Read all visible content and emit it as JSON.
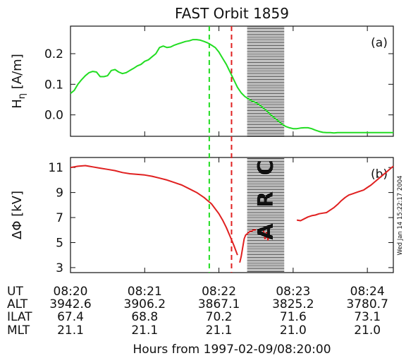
{
  "chart_data": [
    {
      "panel": "(a)",
      "type": "line",
      "title": "FAST Orbit 1859",
      "ylabel": "H_η [A/m]",
      "ylabel_main": "H",
      "ylabel_sub": "η",
      "ylabel_unit": "[A/m]",
      "ylim": [
        -0.07,
        0.29
      ],
      "yticks": [
        "0.2",
        "0.1",
        "0.0"
      ],
      "ytick_values": [
        0.2,
        0.1,
        0.0
      ],
      "xlim": [
        0,
        4.35
      ],
      "color": "#22dd22",
      "series": [
        {
          "x": [
            0.0,
            0.05,
            0.1,
            0.15,
            0.2,
            0.25,
            0.3,
            0.35,
            0.4,
            0.45,
            0.5,
            0.55,
            0.6,
            0.65,
            0.7,
            0.75,
            0.8,
            0.85,
            0.9,
            0.95,
            1.0,
            1.05,
            1.1,
            1.15,
            1.2,
            1.25,
            1.3,
            1.35,
            1.4,
            1.45,
            1.5,
            1.55,
            1.6,
            1.65,
            1.7,
            1.75,
            1.8,
            1.85,
            1.9,
            1.95,
            2.0,
            2.05,
            2.1,
            2.15,
            2.2,
            2.25,
            2.3,
            2.35,
            2.4,
            2.45,
            2.5,
            2.55,
            2.6,
            2.65,
            2.7,
            2.75,
            2.8,
            2.85,
            2.9,
            2.95,
            3.0,
            3.05,
            3.1,
            3.15,
            3.2,
            3.25,
            3.3,
            3.35,
            3.4,
            3.45,
            3.5,
            3.55,
            3.6,
            3.65,
            3.7,
            3.75,
            3.8,
            3.85,
            3.9,
            3.95,
            4.0,
            4.05,
            4.1,
            4.15,
            4.2,
            4.25,
            4.3,
            4.35
          ],
          "y": [
            0.07,
            0.08,
            0.1,
            0.115,
            0.128,
            0.138,
            0.142,
            0.14,
            0.125,
            0.125,
            0.128,
            0.145,
            0.148,
            0.14,
            0.135,
            0.138,
            0.145,
            0.152,
            0.16,
            0.165,
            0.175,
            0.18,
            0.19,
            0.2,
            0.22,
            0.225,
            0.22,
            0.222,
            0.228,
            0.232,
            0.236,
            0.24,
            0.242,
            0.246,
            0.246,
            0.244,
            0.24,
            0.235,
            0.228,
            0.22,
            0.205,
            0.185,
            0.165,
            0.14,
            0.115,
            0.09,
            0.072,
            0.06,
            0.052,
            0.045,
            0.04,
            0.032,
            0.022,
            0.012,
            0.0,
            -0.01,
            -0.02,
            -0.03,
            -0.038,
            -0.042,
            -0.045,
            -0.045,
            -0.043,
            -0.042,
            -0.042,
            -0.045,
            -0.05,
            -0.054,
            -0.057,
            -0.058,
            -0.058,
            -0.059,
            -0.058,
            -0.058,
            -0.058,
            -0.058,
            -0.058,
            -0.058,
            -0.058,
            -0.058,
            -0.058,
            -0.058,
            -0.058,
            -0.058,
            -0.058,
            -0.058,
            -0.058,
            -0.058
          ]
        }
      ]
    },
    {
      "panel": "(b)",
      "type": "line",
      "ylabel": "ΔΦ [kV]",
      "ylim": [
        2.6,
        11.8
      ],
      "yticks": [
        "11",
        "9",
        "7",
        "5",
        "3"
      ],
      "ytick_values": [
        11,
        9,
        7,
        5,
        3
      ],
      "xlim": [
        0,
        4.35
      ],
      "color": "#e02020",
      "series": [
        {
          "segment": 1,
          "x": [
            0.0,
            0.1,
            0.2,
            0.3,
            0.4,
            0.5,
            0.6,
            0.7,
            0.8,
            0.9,
            1.0,
            1.1,
            1.2,
            1.3,
            1.4,
            1.5,
            1.6,
            1.7,
            1.8,
            1.9,
            2.0,
            2.05,
            2.1,
            2.15,
            2.2,
            2.25
          ],
          "y": [
            11.0,
            11.1,
            11.15,
            11.05,
            10.95,
            10.85,
            10.75,
            10.6,
            10.5,
            10.45,
            10.4,
            10.3,
            10.15,
            10.0,
            9.8,
            9.6,
            9.3,
            9.0,
            8.6,
            8.1,
            7.3,
            6.8,
            6.2,
            5.5,
            4.8,
            4.0
          ]
        },
        {
          "segment": 2,
          "x": [
            2.28,
            2.3,
            2.32,
            2.34,
            2.36,
            2.38,
            2.4,
            2.42,
            2.44,
            2.46,
            2.48,
            2.5
          ],
          "y": [
            3.4,
            3.9,
            4.6,
            5.3,
            5.6,
            5.7,
            5.8,
            5.9,
            5.9,
            6.0,
            6.0,
            6.05
          ]
        },
        {
          "segment": 3,
          "x": [
            2.6,
            2.62,
            2.64,
            2.66,
            2.68,
            2.7
          ],
          "y": [
            6.0,
            5.3,
            5.8,
            5.2,
            5.6,
            5.4
          ]
        },
        {
          "segment": 4,
          "x": [
            3.05,
            3.1,
            3.15,
            3.2,
            3.25,
            3.3,
            3.35,
            3.4,
            3.45,
            3.5,
            3.55,
            3.6,
            3.65,
            3.7,
            3.75,
            3.8,
            3.85,
            3.9,
            3.95,
            4.0,
            4.05,
            4.1,
            4.15,
            4.2,
            4.25,
            4.3,
            4.35
          ],
          "y": [
            6.8,
            6.75,
            6.9,
            7.05,
            7.15,
            7.2,
            7.3,
            7.35,
            7.4,
            7.6,
            7.8,
            8.05,
            8.35,
            8.6,
            8.8,
            8.9,
            9.0,
            9.1,
            9.2,
            9.4,
            9.6,
            9.85,
            10.1,
            10.35,
            10.6,
            10.85,
            11.1
          ]
        }
      ]
    }
  ],
  "annotations": {
    "arc_region": {
      "x_start": 2.38,
      "x_end": 2.88,
      "label": "A R C"
    },
    "green_line_x": 1.87,
    "red_line_x": 2.17,
    "timestamp": "Wed Jan 14 15:22:17 2004"
  },
  "table": {
    "row_labels": [
      "UT",
      "ALT",
      "ILAT",
      "MLT"
    ],
    "columns": [
      {
        "x": 0.0,
        "values": [
          "08:20",
          "3942.6",
          "67.4",
          "21.1"
        ]
      },
      {
        "x": 1.0,
        "values": [
          "08:21",
          "3906.2",
          "68.8",
          "21.1"
        ]
      },
      {
        "x": 2.0,
        "values": [
          "08:22",
          "3867.1",
          "70.2",
          "21.1"
        ]
      },
      {
        "x": 3.0,
        "values": [
          "08:23",
          "3825.2",
          "71.6",
          "21.0"
        ]
      },
      {
        "x": 4.0,
        "values": [
          "08:24",
          "3780.7",
          "73.1",
          "21.0"
        ]
      }
    ],
    "xlabel": "Hours from 1997-02-09/08:20:00"
  }
}
